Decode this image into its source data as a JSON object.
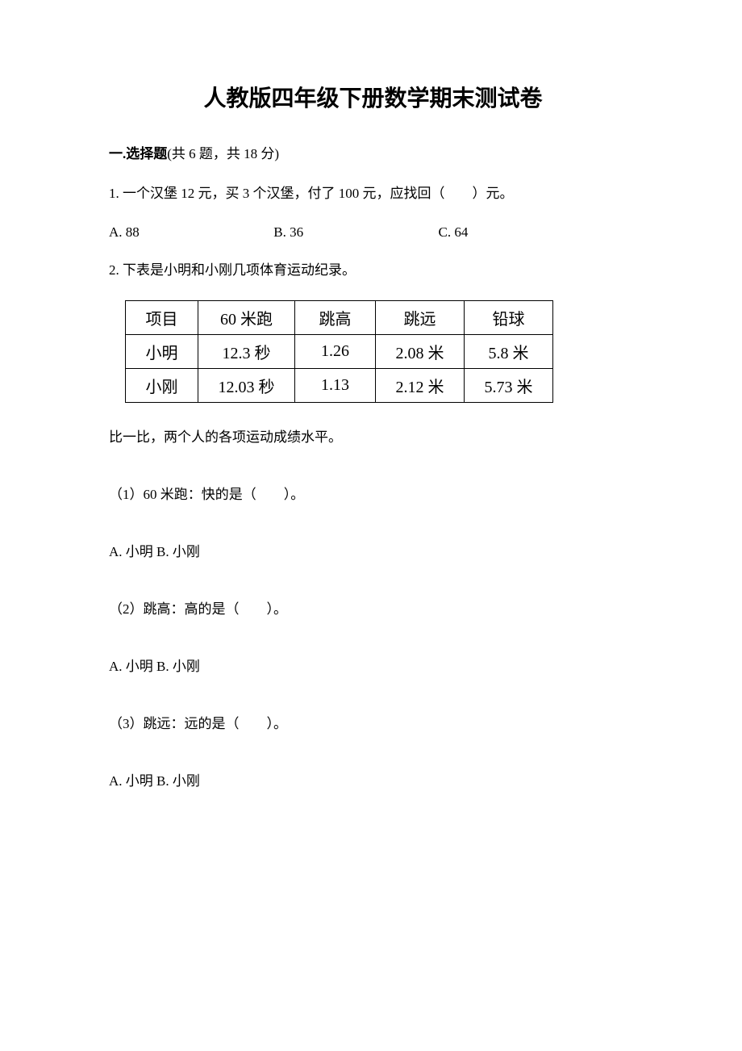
{
  "title": "人教版四年级下册数学期末测试卷",
  "section1": {
    "header_bold": "一.选择题",
    "header_rest": "(共 6 题，共 18 分)"
  },
  "q1": {
    "text": "1. 一个汉堡 12 元，买 3 个汉堡，付了 100 元，应找回（　　）元。",
    "optA": "A. 88",
    "optB": "B. 36",
    "optC": "C. 64"
  },
  "q2": {
    "intro": "2. 下表是小明和小刚几项体育运动纪录。",
    "table": {
      "headers": [
        "项目",
        "60 米跑",
        "跳高",
        "跳远",
        "铅球"
      ],
      "rows": [
        [
          "小明",
          "12.3 秒",
          "1.26",
          "2.08 米",
          "5.8 米"
        ],
        [
          "小刚",
          "12.03 秒",
          "1.13",
          "2.12 米",
          "5.73 米"
        ]
      ]
    },
    "compare_text": "比一比，两个人的各项运动成绩水平。",
    "sub1": {
      "text": "（1）60 米跑：快的是（　　）。",
      "optA": "A. 小明",
      "optB": "B. 小刚"
    },
    "sub2": {
      "text": "（2）跳高：高的是（　　）。",
      "optA": "A. 小明",
      "optB": "B. 小刚"
    },
    "sub3": {
      "text": "（3）跳远：远的是（　　）。",
      "optA": "A. 小明",
      "optB": "B. 小刚"
    }
  }
}
